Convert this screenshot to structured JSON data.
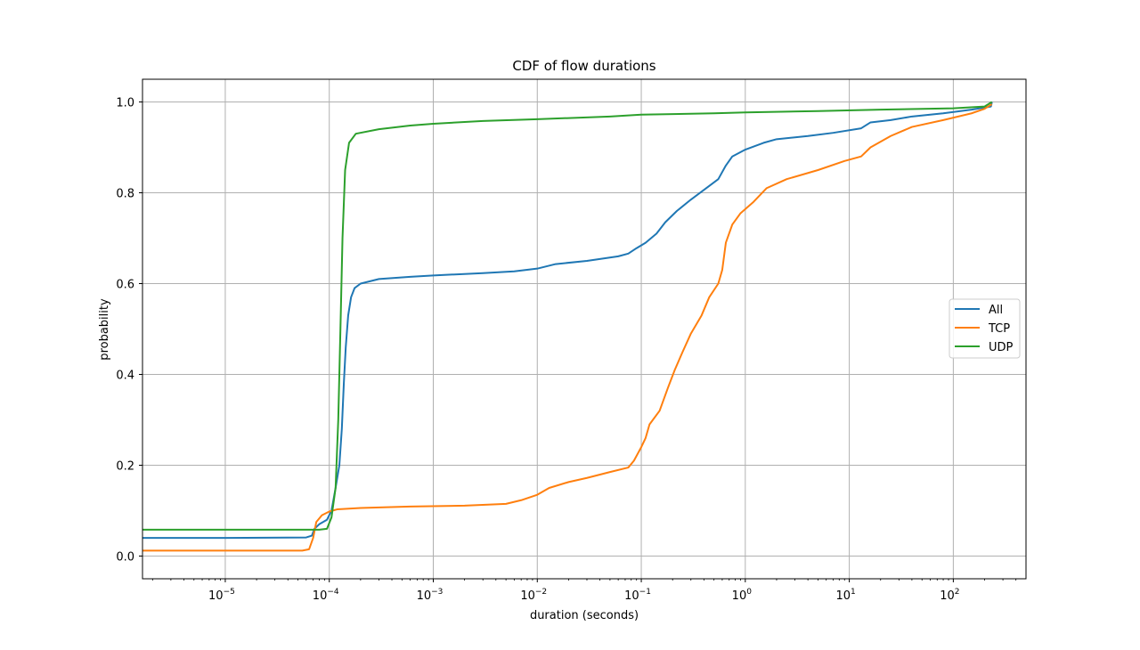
{
  "chart_data": {
    "type": "line",
    "title": "CDF of flow durations",
    "xlabel": "duration (seconds)",
    "ylabel": "probability",
    "xscale": "log",
    "xlim": [
      1.6e-06,
      500
    ],
    "ylim": [
      -0.05,
      1.05
    ],
    "grid": true,
    "legend_position": "right",
    "xticks": [
      {
        "value": 1e-05,
        "base": "10",
        "exp": "−5"
      },
      {
        "value": 0.0001,
        "base": "10",
        "exp": "−4"
      },
      {
        "value": 0.001,
        "base": "10",
        "exp": "−3"
      },
      {
        "value": 0.01,
        "base": "10",
        "exp": "−2"
      },
      {
        "value": 0.1,
        "base": "10",
        "exp": "−1"
      },
      {
        "value": 1,
        "base": "10",
        "exp": "0"
      },
      {
        "value": 10,
        "base": "10",
        "exp": "1"
      },
      {
        "value": 100,
        "base": "10",
        "exp": "2"
      }
    ],
    "yticks": [
      {
        "value": 0.0,
        "label": "0.0"
      },
      {
        "value": 0.2,
        "label": "0.2"
      },
      {
        "value": 0.4,
        "label": "0.4"
      },
      {
        "value": 0.6,
        "label": "0.6"
      },
      {
        "value": 0.8,
        "label": "0.8"
      },
      {
        "value": 1.0,
        "label": "1.0"
      }
    ],
    "series": [
      {
        "name": "All",
        "color": "#1f77b4",
        "points": [
          [
            1.6e-06,
            0.04
          ],
          [
            1e-05,
            0.04
          ],
          [
            6e-05,
            0.041
          ],
          [
            6.8e-05,
            0.045
          ],
          [
            7.2e-05,
            0.06
          ],
          [
            8e-05,
            0.07
          ],
          [
            9.5e-05,
            0.08
          ],
          [
            0.000105,
            0.1
          ],
          [
            0.000115,
            0.15
          ],
          [
            0.000125,
            0.2
          ],
          [
            0.000132,
            0.28
          ],
          [
            0.000138,
            0.38
          ],
          [
            0.000144,
            0.46
          ],
          [
            0.000152,
            0.53
          ],
          [
            0.000162,
            0.57
          ],
          [
            0.000175,
            0.59
          ],
          [
            0.0002,
            0.6
          ],
          [
            0.0003,
            0.61
          ],
          [
            0.0006,
            0.615
          ],
          [
            0.001,
            0.618
          ],
          [
            0.003,
            0.623
          ],
          [
            0.006,
            0.627
          ],
          [
            0.01,
            0.633
          ],
          [
            0.015,
            0.643
          ],
          [
            0.03,
            0.65
          ],
          [
            0.06,
            0.66
          ],
          [
            0.075,
            0.666
          ],
          [
            0.09,
            0.678
          ],
          [
            0.11,
            0.69
          ],
          [
            0.14,
            0.71
          ],
          [
            0.17,
            0.735
          ],
          [
            0.22,
            0.76
          ],
          [
            0.3,
            0.785
          ],
          [
            0.45,
            0.815
          ],
          [
            0.55,
            0.83
          ],
          [
            0.65,
            0.86
          ],
          [
            0.75,
            0.88
          ],
          [
            1,
            0.895
          ],
          [
            1.5,
            0.91
          ],
          [
            2,
            0.918
          ],
          [
            4,
            0.925
          ],
          [
            7,
            0.932
          ],
          [
            13,
            0.942
          ],
          [
            16,
            0.955
          ],
          [
            25,
            0.96
          ],
          [
            40,
            0.968
          ],
          [
            80,
            0.975
          ],
          [
            150,
            0.983
          ],
          [
            230,
            0.99
          ],
          [
            235,
            1.0
          ]
        ]
      },
      {
        "name": "TCP",
        "color": "#ff7f0e",
        "points": [
          [
            1.6e-06,
            0.012
          ],
          [
            1e-05,
            0.012
          ],
          [
            5.5e-05,
            0.012
          ],
          [
            6.4e-05,
            0.015
          ],
          [
            7e-05,
            0.04
          ],
          [
            7.5e-05,
            0.075
          ],
          [
            8.5e-05,
            0.09
          ],
          [
            0.0001,
            0.098
          ],
          [
            0.00012,
            0.103
          ],
          [
            0.0002,
            0.106
          ],
          [
            0.0006,
            0.109
          ],
          [
            0.002,
            0.111
          ],
          [
            0.005,
            0.115
          ],
          [
            0.007,
            0.123
          ],
          [
            0.01,
            0.135
          ],
          [
            0.013,
            0.15
          ],
          [
            0.02,
            0.163
          ],
          [
            0.03,
            0.172
          ],
          [
            0.05,
            0.185
          ],
          [
            0.075,
            0.195
          ],
          [
            0.085,
            0.21
          ],
          [
            0.1,
            0.24
          ],
          [
            0.11,
            0.26
          ],
          [
            0.12,
            0.29
          ],
          [
            0.15,
            0.32
          ],
          [
            0.18,
            0.37
          ],
          [
            0.21,
            0.41
          ],
          [
            0.25,
            0.45
          ],
          [
            0.3,
            0.49
          ],
          [
            0.38,
            0.53
          ],
          [
            0.45,
            0.57
          ],
          [
            0.55,
            0.6
          ],
          [
            0.6,
            0.63
          ],
          [
            0.65,
            0.69
          ],
          [
            0.75,
            0.73
          ],
          [
            0.9,
            0.755
          ],
          [
            1.2,
            0.78
          ],
          [
            1.6,
            0.81
          ],
          [
            2.5,
            0.83
          ],
          [
            5,
            0.85
          ],
          [
            9,
            0.87
          ],
          [
            13,
            0.88
          ],
          [
            16,
            0.9
          ],
          [
            25,
            0.925
          ],
          [
            40,
            0.945
          ],
          [
            80,
            0.96
          ],
          [
            150,
            0.975
          ],
          [
            200,
            0.985
          ],
          [
            235,
            0.995
          ]
        ]
      },
      {
        "name": "UDP",
        "color": "#2ca02c",
        "points": [
          [
            1.6e-06,
            0.058
          ],
          [
            1e-05,
            0.058
          ],
          [
            8e-05,
            0.058
          ],
          [
            9.5e-05,
            0.06
          ],
          [
            0.000105,
            0.085
          ],
          [
            0.000115,
            0.15
          ],
          [
            0.000122,
            0.3
          ],
          [
            0.000128,
            0.5
          ],
          [
            0.000134,
            0.7
          ],
          [
            0.000142,
            0.85
          ],
          [
            0.000155,
            0.91
          ],
          [
            0.00018,
            0.93
          ],
          [
            0.0003,
            0.94
          ],
          [
            0.0006,
            0.948
          ],
          [
            0.001,
            0.952
          ],
          [
            0.003,
            0.958
          ],
          [
            0.01,
            0.962
          ],
          [
            0.05,
            0.968
          ],
          [
            0.1,
            0.972
          ],
          [
            0.5,
            0.975
          ],
          [
            1,
            0.977
          ],
          [
            5,
            0.98
          ],
          [
            20,
            0.983
          ],
          [
            100,
            0.986
          ],
          [
            200,
            0.99
          ],
          [
            235,
            1.0
          ]
        ]
      }
    ]
  }
}
